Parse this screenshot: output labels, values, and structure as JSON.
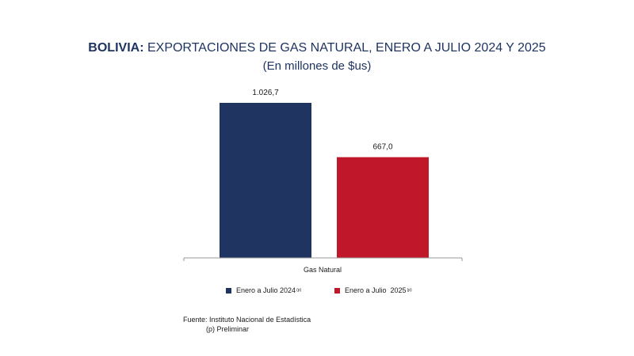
{
  "header": {
    "title_bold": "BOLIVIA:",
    "title_rest": "EXPORTACIONES DE GAS NATURAL, ENERO A JULIO 2024 Y 2025",
    "subtitle": "(En millones de $us)"
  },
  "chart_data": {
    "type": "bar",
    "categories": [
      "Gas Natural"
    ],
    "series": [
      {
        "name": "Enero a Julio 2024",
        "name_sup": "(p)",
        "values": [
          1026.7
        ],
        "label": "1.026,7",
        "color": "#1f3460"
      },
      {
        "name": "Enero a Julio  2025",
        "name_sup": "(p)",
        "values": [
          667.0
        ],
        "label": "667,0",
        "color": "#c0182a"
      }
    ],
    "ylim": [
      0,
      1100
    ],
    "grid": false,
    "legend_position": "bottom"
  },
  "footer": {
    "source": "Fuente: Instituto Nacional de Estadística",
    "note": "(p) Preliminar"
  }
}
